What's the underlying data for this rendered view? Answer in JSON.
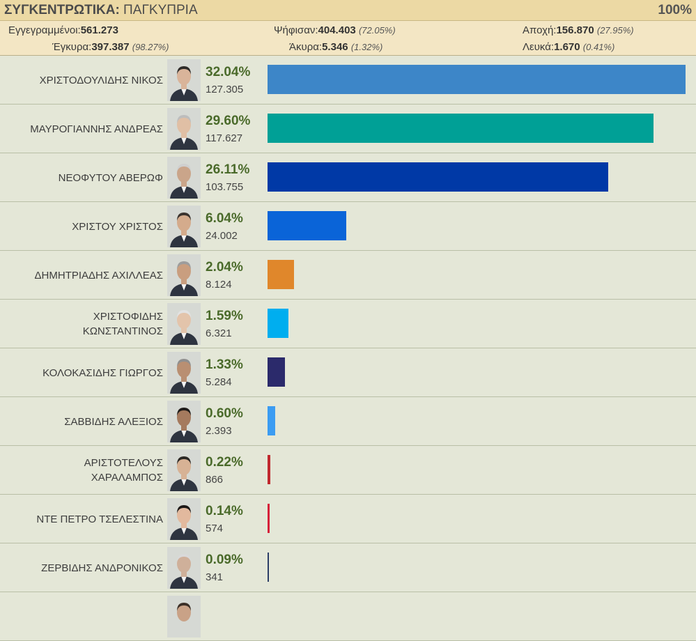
{
  "header": {
    "title_bold": "ΣΥΓΚΕΝΤΡΩΤΙΚΑ:",
    "title_rest": " ΠΑΓΚΥΠΡΙΑ",
    "percent_counted": "100%"
  },
  "stats": {
    "registered_label": "Εγγεγραμμένοι:",
    "registered_value": "561.273",
    "valid_label": "Έγκυρα:",
    "valid_value": "397.387",
    "valid_pct": "(98.27%)",
    "voted_label": "Ψήφισαν:",
    "voted_value": "404.403",
    "voted_pct": "(72.05%)",
    "invalid_label": "Άκυρα:",
    "invalid_value": "5.346",
    "invalid_pct": "(1.32%)",
    "abstention_label": "Αποχή:",
    "abstention_value": "156.870",
    "abstention_pct": "(27.95%)",
    "blank_label": "Λευκά:",
    "blank_value": "1.670",
    "blank_pct": "(0.41%)"
  },
  "chart_data": {
    "type": "bar",
    "orientation": "horizontal",
    "max_value": 32.04,
    "candidates": [
      {
        "name": "ΧΡΙΣΤΟΔΟΥΛΙΔΗΣ ΝΙΚΟΣ",
        "percent": 32.04,
        "percent_label": "32.04%",
        "votes": "127.305",
        "color": "#3d86c8"
      },
      {
        "name": "ΜΑΥΡΟΓΙΑΝΝΗΣ ΑΝΔΡΕΑΣ",
        "percent": 29.6,
        "percent_label": "29.60%",
        "votes": "117.627",
        "color": "#00a096"
      },
      {
        "name": "ΝΕΟΦΥΤΟΥ ΑΒΕΡΩΦ",
        "percent": 26.11,
        "percent_label": "26.11%",
        "votes": "103.755",
        "color": "#0039a6"
      },
      {
        "name": "ΧΡΙΣΤΟΥ ΧΡΙΣΤΟΣ",
        "percent": 6.04,
        "percent_label": "6.04%",
        "votes": "24.002",
        "color": "#0a64d8"
      },
      {
        "name": "ΔΗΜΗΤΡΙΑΔΗΣ ΑΧΙΛΛΕΑΣ",
        "percent": 2.04,
        "percent_label": "2.04%",
        "votes": "8.124",
        "color": "#e0872b"
      },
      {
        "name": "ΧΡΙΣΤΟΦΙΔΗΣ ΚΩΝΣΤΑΝΤΙΝΟΣ",
        "name_line1": "ΧΡΙΣΤΟΦΙΔΗΣ",
        "name_line2": "ΚΩΝΣΤΑΝΤΙΝΟΣ",
        "percent": 1.59,
        "percent_label": "1.59%",
        "votes": "6.321",
        "color": "#00aeef"
      },
      {
        "name": "ΚΟΛΟΚΑΣΙΔΗΣ ΓΙΩΡΓΟΣ",
        "percent": 1.33,
        "percent_label": "1.33%",
        "votes": "5.284",
        "color": "#2b2a6b"
      },
      {
        "name": "ΣΑΒΒΙΔΗΣ ΑΛΕΞΙΟΣ",
        "percent": 0.6,
        "percent_label": "0.60%",
        "votes": "2.393",
        "color": "#3b9cf2"
      },
      {
        "name": "ΑΡΙΣΤΟΤΕΛΟΥΣ ΧΑΡΑΛΑΜΠΟΣ",
        "name_line1": "ΑΡΙΣΤΟΤΕΛΟΥΣ",
        "name_line2": "ΧΑΡΑΛΑΜΠΟΣ",
        "percent": 0.22,
        "percent_label": "0.22%",
        "votes": "866",
        "color": "#c0282d"
      },
      {
        "name": "ΝΤΕ ΠΕΤΡΟ ΤΣΕΛΕΣΤΙΝΑ",
        "percent": 0.14,
        "percent_label": "0.14%",
        "votes": "574",
        "color": "#d6203a"
      },
      {
        "name": "ΖΕΡΒΙΔΗΣ ΑΝΔΡΟΝΙΚΟΣ",
        "percent": 0.09,
        "percent_label": "0.09%",
        "votes": "341",
        "color": "#2c3e66"
      }
    ]
  }
}
